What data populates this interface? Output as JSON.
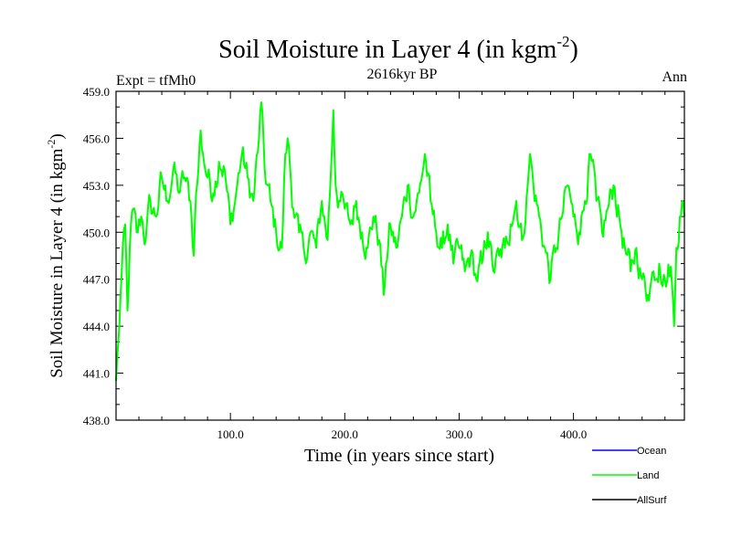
{
  "chart_data": {
    "type": "line",
    "title": "Soil Moisture in Layer 4 (in kgm",
    "title_sup": "-2",
    "title_close": ")",
    "subtitle": "2616kyr BP",
    "left_label": "Expt = tfMh0",
    "right_label": "Ann",
    "xlabel": "Time (in years since start)",
    "ylabel": "Soil Moisture in Layer 4 (in kgm",
    "ylabel_sup": "-2",
    "ylabel_close": ")",
    "xlim": [
      0,
      497
    ],
    "ylim": [
      438.0,
      459.0
    ],
    "x_ticks": [
      100,
      200,
      300,
      400
    ],
    "x_tick_labels": [
      "100.0",
      "200.0",
      "300.0",
      "400.0"
    ],
    "y_ticks": [
      438,
      441,
      444,
      447,
      450,
      453,
      456,
      459
    ],
    "y_tick_labels": [
      "438.0",
      "441.0",
      "444.0",
      "447.0",
      "450.0",
      "453.0",
      "456.0",
      "459.0"
    ],
    "legend_position": "bottom-right",
    "series": [
      {
        "name": "Ocean",
        "color": "#0000ff",
        "values": []
      },
      {
        "name": "Land",
        "color": "#00ff00",
        "keypoints": [
          [
            0,
            440.5
          ],
          [
            2,
            443
          ],
          [
            5,
            447.5
          ],
          [
            8,
            450.5
          ],
          [
            10,
            445
          ],
          [
            12,
            449
          ],
          [
            15,
            451.5
          ],
          [
            18,
            450
          ],
          [
            22,
            451
          ],
          [
            26,
            449.5
          ],
          [
            30,
            452
          ],
          [
            35,
            451
          ],
          [
            40,
            453.5
          ],
          [
            45,
            452
          ],
          [
            50,
            454
          ],
          [
            55,
            452.5
          ],
          [
            60,
            453.5
          ],
          [
            65,
            452
          ],
          [
            68,
            448.5
          ],
          [
            70,
            452.5
          ],
          [
            72,
            454
          ],
          [
            74,
            456.5
          ],
          [
            76,
            455
          ],
          [
            80,
            453.5
          ],
          [
            85,
            452.5
          ],
          [
            90,
            454.5
          ],
          [
            95,
            454
          ],
          [
            100,
            450.5
          ],
          [
            105,
            452.5
          ],
          [
            110,
            455
          ],
          [
            115,
            453.5
          ],
          [
            120,
            452
          ],
          [
            125,
            456
          ],
          [
            127,
            458.3
          ],
          [
            130,
            454
          ],
          [
            135,
            452
          ],
          [
            140,
            450
          ],
          [
            145,
            449
          ],
          [
            148,
            455
          ],
          [
            150,
            456
          ],
          [
            155,
            451.5
          ],
          [
            160,
            450
          ],
          [
            165,
            448.5
          ],
          [
            170,
            450
          ],
          [
            175,
            449
          ],
          [
            180,
            452
          ],
          [
            185,
            449.5
          ],
          [
            188,
            454
          ],
          [
            190,
            457.8
          ],
          [
            192,
            453
          ],
          [
            195,
            452
          ],
          [
            200,
            451.5
          ],
          [
            205,
            450.5
          ],
          [
            210,
            452
          ],
          [
            215,
            450
          ],
          [
            220,
            449
          ],
          [
            225,
            451
          ],
          [
            230,
            449.5
          ],
          [
            234,
            446
          ],
          [
            236,
            448
          ],
          [
            240,
            450.5
          ],
          [
            245,
            449
          ],
          [
            250,
            451
          ],
          [
            255,
            453
          ],
          [
            260,
            451
          ],
          [
            265,
            452.5
          ],
          [
            270,
            455
          ],
          [
            275,
            452
          ],
          [
            280,
            450
          ],
          [
            285,
            449
          ],
          [
            290,
            450.5
          ],
          [
            295,
            448
          ],
          [
            300,
            449
          ],
          [
            305,
            447.5
          ],
          [
            310,
            448.5
          ],
          [
            315,
            447
          ],
          [
            320,
            448
          ],
          [
            325,
            450
          ],
          [
            330,
            447.5
          ],
          [
            335,
            448.5
          ],
          [
            340,
            449
          ],
          [
            345,
            450.5
          ],
          [
            350,
            452
          ],
          [
            355,
            449.5
          ],
          [
            360,
            453
          ],
          [
            362,
            455
          ],
          [
            365,
            453
          ],
          [
            370,
            451
          ],
          [
            375,
            449
          ],
          [
            380,
            447
          ],
          [
            385,
            449
          ],
          [
            390,
            451
          ],
          [
            395,
            453
          ],
          [
            400,
            451
          ],
          [
            405,
            450
          ],
          [
            410,
            452
          ],
          [
            415,
            455
          ],
          [
            420,
            452
          ],
          [
            425,
            450
          ],
          [
            430,
            451.5
          ],
          [
            435,
            453
          ],
          [
            440,
            451
          ],
          [
            445,
            449
          ],
          [
            450,
            447.5
          ],
          [
            455,
            449
          ],
          [
            460,
            447
          ],
          [
            465,
            446
          ],
          [
            470,
            447.5
          ],
          [
            475,
            448
          ],
          [
            480,
            447
          ],
          [
            485,
            447.8
          ],
          [
            488,
            444
          ],
          [
            490,
            449
          ],
          [
            493,
            451
          ],
          [
            495,
            452
          ],
          [
            497,
            451
          ]
        ]
      },
      {
        "name": "AllSurf",
        "color": "#000000",
        "values": []
      }
    ]
  }
}
